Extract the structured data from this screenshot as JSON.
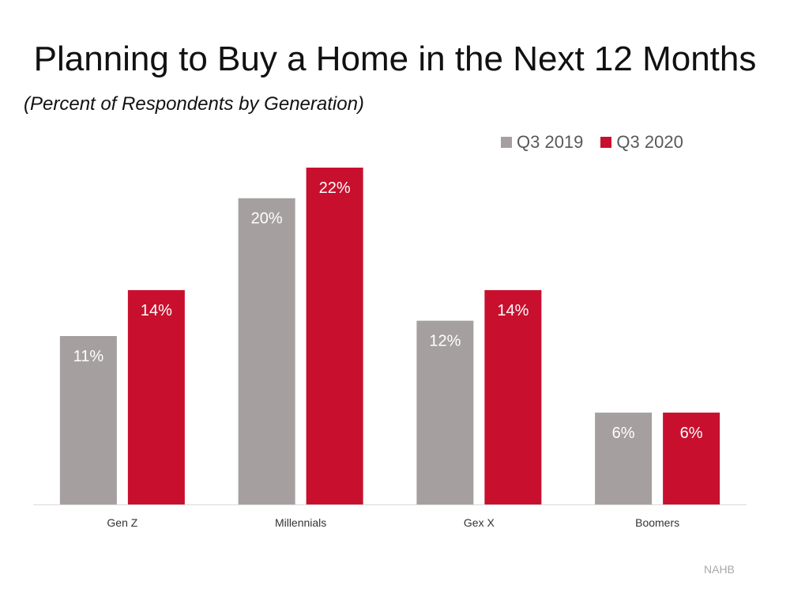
{
  "chart_data": {
    "type": "bar",
    "title": "Planning to Buy a Home in the Next 12 Months",
    "subtitle": "(Percent of Respondents by Generation)",
    "categories": [
      "Gen Z",
      "Millennials",
      "Gex X",
      "Boomers"
    ],
    "series": [
      {
        "name": "Q3 2019",
        "color": "#a5a09f",
        "values": [
          11,
          20,
          12,
          6
        ],
        "labels": [
          "11%",
          "20%",
          "12%",
          "6%"
        ]
      },
      {
        "name": "Q3 2020",
        "color": "#c8102e",
        "values": [
          14,
          22,
          14,
          6
        ],
        "labels": [
          "14%",
          "22%",
          "14%",
          "6%"
        ]
      }
    ],
    "ylim": [
      0,
      22
    ],
    "grid": false,
    "legend_position": "top-right",
    "source": "NAHB"
  }
}
